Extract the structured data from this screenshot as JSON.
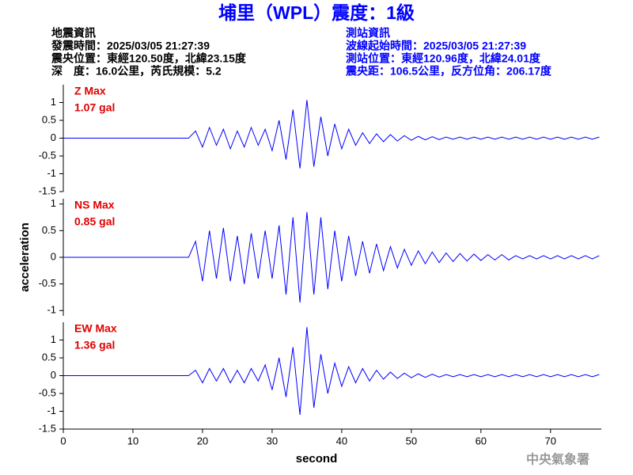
{
  "header": {
    "title": "埔里（WPL）震度：1級",
    "left": [
      "地震資訊",
      "發震時間：2025/03/05 21:27:39",
      "震央位置：東經120.50度，北緯23.15度",
      "深　度：16.0公里，芮氏規模：5.2"
    ],
    "right": [
      "測站資訊",
      "波線起始時間：2025/03/05 21:27:39",
      "測站位置：東經120.96度，北緯24.01度",
      "震央距：106.5公里，反方位角：206.17度"
    ]
  },
  "footer": "中央氣象署",
  "chart_data": [
    {
      "type": "line",
      "label": "Z Max",
      "max_label": "1.07 gal",
      "color": "#0000ff",
      "label_color": "#e00000",
      "x": [
        0,
        1,
        2,
        3,
        4,
        5,
        6,
        7,
        8,
        9,
        10,
        11,
        12,
        13,
        14,
        15,
        16,
        17,
        18,
        19,
        20,
        21,
        22,
        23,
        24,
        25,
        26,
        27,
        28,
        29,
        30,
        31,
        32,
        33,
        34,
        35,
        36,
        37,
        38,
        39,
        40,
        41,
        42,
        43,
        44,
        45,
        46,
        47,
        48,
        49,
        50,
        51,
        52,
        53,
        54,
        55,
        56,
        57,
        58,
        59,
        60,
        61,
        62,
        63,
        64,
        65,
        66,
        67,
        68,
        69,
        70,
        71,
        72,
        73,
        74,
        75,
        76,
        77
      ],
      "values": [
        0,
        0,
        0,
        0,
        0,
        0,
        0,
        0,
        0,
        0,
        0,
        0,
        0,
        0,
        0,
        0,
        0,
        0,
        0,
        0.2,
        -0.25,
        0.3,
        -0.2,
        0.25,
        -0.3,
        0.2,
        -0.25,
        0.3,
        -0.2,
        0.25,
        -0.35,
        0.5,
        -0.6,
        0.8,
        -0.85,
        1.07,
        -0.8,
        0.6,
        -0.5,
        0.4,
        -0.3,
        0.25,
        -0.2,
        0.15,
        -0.15,
        0.12,
        -0.1,
        0.1,
        -0.08,
        0.07,
        -0.06,
        0.05,
        -0.05,
        0.04,
        -0.04,
        0.03,
        -0.03,
        0.03,
        -0.03,
        0.03,
        -0.03,
        0.03,
        -0.03,
        0.03,
        -0.03,
        0.03,
        -0.03,
        0.03,
        -0.03,
        0.03,
        -0.03,
        0.03,
        -0.03,
        0.03,
        -0.03,
        0.03,
        -0.03,
        0.03
      ],
      "xlim": [
        0,
        77.3
      ],
      "ylim": [
        -1.5,
        1.5
      ],
      "yticks": [
        -1.5,
        -1,
        -0.5,
        0,
        0.5,
        1
      ]
    },
    {
      "type": "line",
      "label": "NS Max",
      "max_label": "0.85 gal",
      "color": "#0000ff",
      "label_color": "#e00000",
      "y_label": "acceleration",
      "x": [
        0,
        1,
        2,
        3,
        4,
        5,
        6,
        7,
        8,
        9,
        10,
        11,
        12,
        13,
        14,
        15,
        16,
        17,
        18,
        19,
        20,
        21,
        22,
        23,
        24,
        25,
        26,
        27,
        28,
        29,
        30,
        31,
        32,
        33,
        34,
        35,
        36,
        37,
        38,
        39,
        40,
        41,
        42,
        43,
        44,
        45,
        46,
        47,
        48,
        49,
        50,
        51,
        52,
        53,
        54,
        55,
        56,
        57,
        58,
        59,
        60,
        61,
        62,
        63,
        64,
        65,
        66,
        67,
        68,
        69,
        70,
        71,
        72,
        73,
        74,
        75,
        76,
        77
      ],
      "values": [
        0,
        0,
        0,
        0,
        0,
        0,
        0,
        0,
        0,
        0,
        0,
        0,
        0,
        0,
        0,
        0,
        0,
        0,
        0,
        0.3,
        -0.45,
        0.5,
        -0.4,
        0.55,
        -0.45,
        0.4,
        -0.5,
        0.45,
        -0.4,
        0.5,
        -0.4,
        0.6,
        -0.7,
        0.75,
        -0.85,
        0.85,
        -0.7,
        0.75,
        -0.6,
        0.5,
        -0.45,
        0.4,
        -0.35,
        0.3,
        -0.3,
        0.25,
        -0.25,
        0.2,
        -0.2,
        0.15,
        -0.15,
        0.12,
        -0.12,
        0.1,
        -0.1,
        0.08,
        -0.08,
        0.07,
        -0.07,
        0.06,
        -0.06,
        0.05,
        -0.05,
        0.05,
        -0.05,
        0.03,
        -0.03,
        0.03,
        -0.03,
        0.03,
        -0.03,
        0.03,
        -0.03,
        0.03,
        -0.03,
        0.03,
        -0.03,
        0.03
      ],
      "xlim": [
        0,
        77.3
      ],
      "ylim": [
        -1.1,
        1.1
      ],
      "yticks": [
        -1,
        -0.5,
        0,
        0.5,
        1
      ]
    },
    {
      "type": "line",
      "label": "EW Max",
      "max_label": "1.36 gal",
      "color": "#0000ff",
      "label_color": "#e00000",
      "x_label": "second",
      "x": [
        0,
        1,
        2,
        3,
        4,
        5,
        6,
        7,
        8,
        9,
        10,
        11,
        12,
        13,
        14,
        15,
        16,
        17,
        18,
        19,
        20,
        21,
        22,
        23,
        24,
        25,
        26,
        27,
        28,
        29,
        30,
        31,
        32,
        33,
        34,
        35,
        36,
        37,
        38,
        39,
        40,
        41,
        42,
        43,
        44,
        45,
        46,
        47,
        48,
        49,
        50,
        51,
        52,
        53,
        54,
        55,
        56,
        57,
        58,
        59,
        60,
        61,
        62,
        63,
        64,
        65,
        66,
        67,
        68,
        69,
        70,
        71,
        72,
        73,
        74,
        75,
        76,
        77
      ],
      "values": [
        0,
        0,
        0,
        0,
        0,
        0,
        0,
        0,
        0,
        0,
        0,
        0,
        0,
        0,
        0,
        0,
        0,
        0,
        0,
        0.15,
        -0.2,
        0.2,
        -0.15,
        0.2,
        -0.2,
        0.15,
        -0.2,
        0.2,
        -0.15,
        0.3,
        -0.4,
        0.5,
        -0.6,
        0.8,
        -1.1,
        1.36,
        -0.9,
        0.6,
        -0.5,
        0.35,
        -0.3,
        0.25,
        -0.2,
        0.2,
        -0.15,
        0.15,
        -0.1,
        0.1,
        -0.08,
        0.07,
        -0.06,
        0.05,
        -0.05,
        0.04,
        -0.04,
        0.03,
        -0.03,
        0.03,
        -0.03,
        0.03,
        -0.03,
        0.03,
        -0.03,
        0.03,
        -0.03,
        0.03,
        -0.03,
        0.03,
        -0.03,
        0.03,
        -0.03,
        0.03,
        -0.03,
        0.03,
        -0.03,
        0.03,
        -0.03,
        0.03
      ],
      "xlim": [
        0,
        77.3
      ],
      "ylim": [
        -1.5,
        1.5
      ],
      "yticks": [
        -1.5,
        -1,
        -0.5,
        0,
        0.5,
        1
      ],
      "xticks": [
        0,
        10,
        20,
        30,
        40,
        50,
        60,
        70
      ]
    }
  ]
}
